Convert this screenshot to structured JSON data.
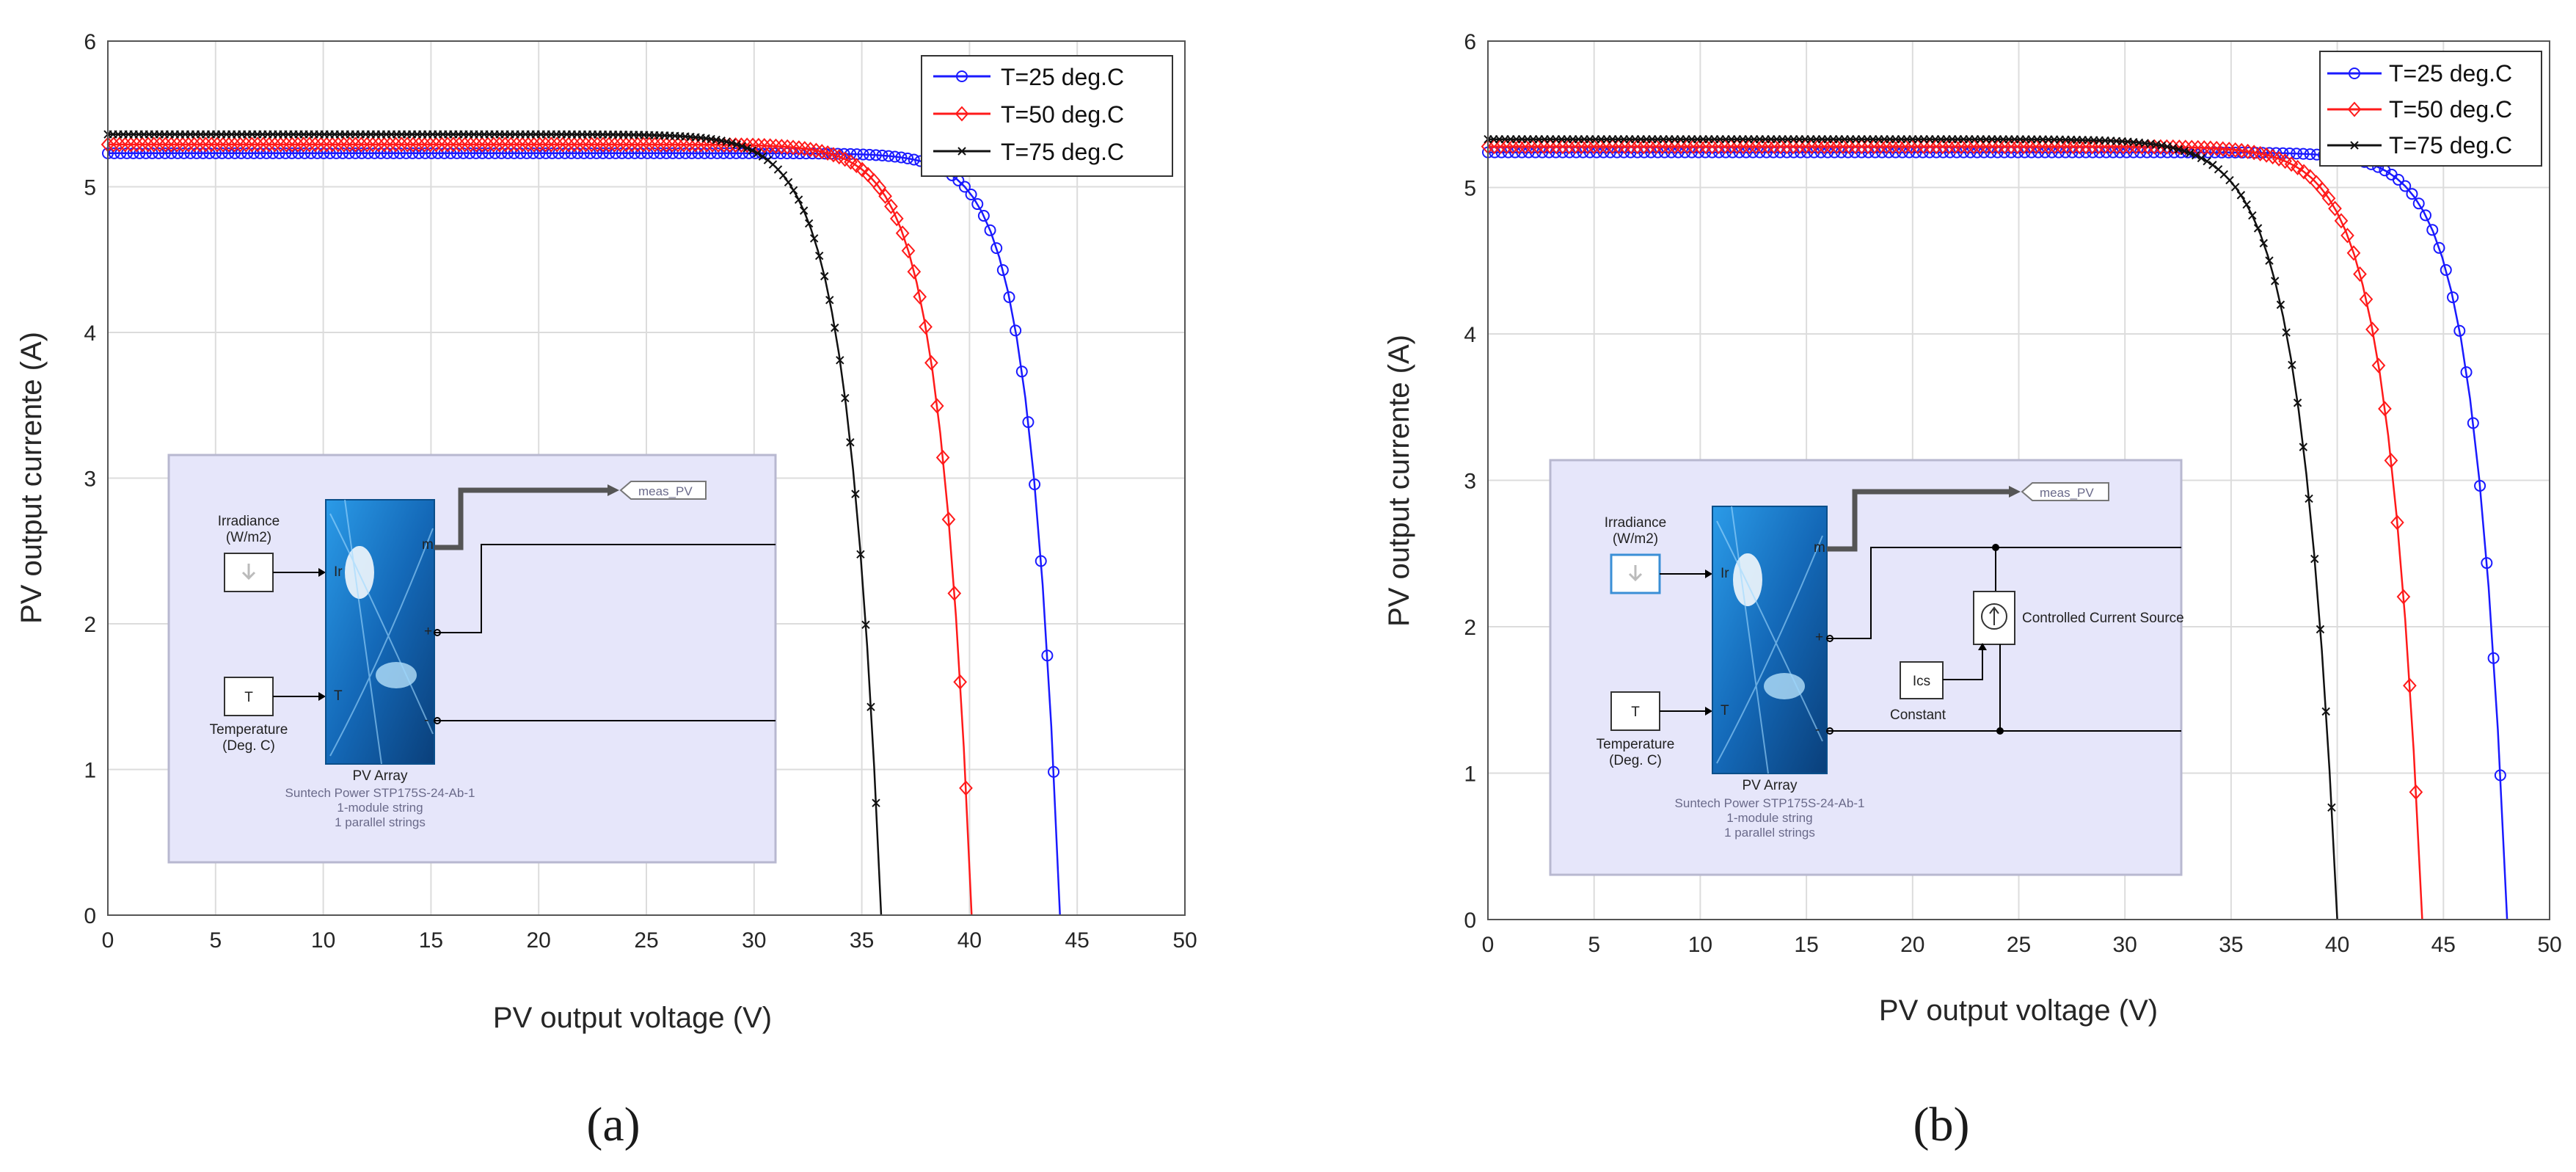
{
  "colors": {
    "series": [
      "#1a1aff",
      "#ff1a1a",
      "#111111"
    ],
    "inset_bg": "#e6e6fa",
    "inset_border": "#b8b8d0",
    "pv_block": "#1a7fd6"
  },
  "chart_data": [
    {
      "type": "line",
      "panel": "a",
      "caption": "(a)",
      "xlabel": "PV output voltage (V)",
      "ylabel": "PV output currente (A)",
      "xlim": [
        0,
        50
      ],
      "ylim": [
        0,
        6
      ],
      "xticks": [
        0,
        5,
        10,
        15,
        20,
        25,
        30,
        35,
        40,
        45,
        50
      ],
      "yticks": [
        0,
        1,
        2,
        3,
        4,
        5,
        6
      ],
      "grid": true,
      "legend_position": "top-right",
      "series": [
        {
          "name": "T=25 deg.C",
          "marker": "circle",
          "isc": 5.23,
          "voc": 44.2,
          "k": 0.032
        },
        {
          "name": "T=50 deg.C",
          "marker": "diamond",
          "isc": 5.29,
          "voc": 40.1,
          "k": 0.037
        },
        {
          "name": "T=75 deg.C",
          "marker": "x",
          "isc": 5.36,
          "voc": 35.9,
          "k": 0.043
        }
      ],
      "inset": {
        "irradiance_label_1": "Irradiance",
        "irradiance_label_2": "(W/m2)",
        "temperature_block": "T",
        "temperature_label_1": "Temperature",
        "temperature_label_2": "(Deg. C)",
        "goto_tag": "meas_PV",
        "port_ir": "Ir",
        "port_t": "T",
        "port_m": "m",
        "port_plus": "+",
        "port_minus": "-",
        "block_name": "PV Array",
        "desc_1": "Suntech Power STP175S-24-Ab-1",
        "desc_2": "1-module string",
        "desc_3": "1 parallel strings"
      }
    },
    {
      "type": "line",
      "panel": "b",
      "caption": "(b)",
      "xlabel": "PV output voltage (V)",
      "ylabel": "PV output currente (A)",
      "xlim": [
        0,
        50
      ],
      "ylim": [
        0,
        6
      ],
      "xticks": [
        0,
        5,
        10,
        15,
        20,
        25,
        30,
        35,
        40,
        45,
        50
      ],
      "yticks": [
        0,
        1,
        2,
        3,
        4,
        5,
        6
      ],
      "grid": true,
      "legend_position": "top-right",
      "series": [
        {
          "name": "T=25 deg.C",
          "marker": "circle",
          "isc": 5.24,
          "voc": 48.0,
          "k": 0.032
        },
        {
          "name": "T=50 deg.C",
          "marker": "diamond",
          "isc": 5.28,
          "voc": 44.0,
          "k": 0.037
        },
        {
          "name": "T=75 deg.C",
          "marker": "x",
          "isc": 5.33,
          "voc": 40.0,
          "k": 0.043
        }
      ],
      "inset": {
        "irradiance_label_1": "Irradiance",
        "irradiance_label_2": "(W/m2)",
        "temperature_block": "T",
        "temperature_label_1": "Temperature",
        "temperature_label_2": "(Deg. C)",
        "goto_tag": "meas_PV",
        "port_ir": "Ir",
        "port_t": "T",
        "port_m": "m",
        "port_plus": "+",
        "port_minus": "-",
        "block_name": "PV Array",
        "desc_1": "Suntech Power STP175S-24-Ab-1",
        "desc_2": "1-module string",
        "desc_3": "1 parallel strings",
        "source_label": "Controlled Current Source",
        "const_block": "Ics",
        "const_label": "Constant"
      }
    }
  ]
}
